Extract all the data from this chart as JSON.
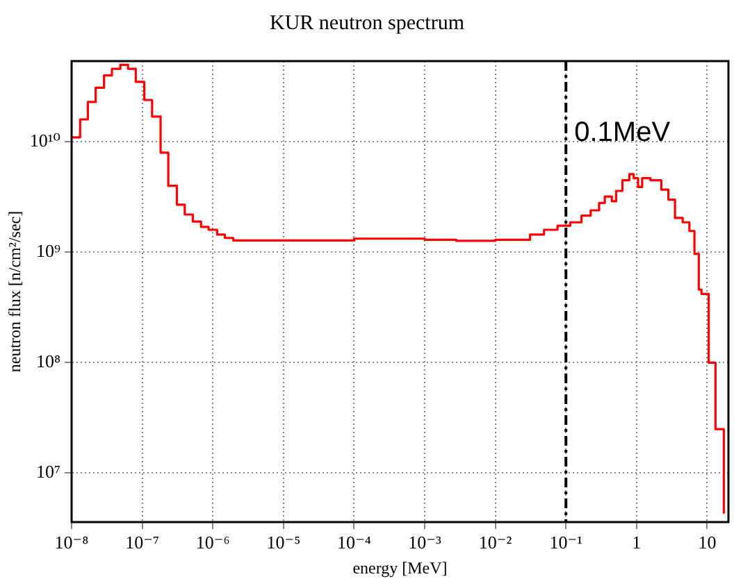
{
  "chart_data": {
    "type": "step",
    "title": "KUR neutron spectrum",
    "xlabel": "energy [MeV]",
    "ylabel": "neutron flux [n/cm²/sec]",
    "log": "xy",
    "grid": true,
    "legend": false,
    "xlim": [
      1e-08,
      20
    ],
    "ylim": [
      3600000.0,
      54000000000.0
    ],
    "xticks": [
      {
        "value": 1e-08,
        "label": "10⁻⁸"
      },
      {
        "value": 1e-07,
        "label": "10⁻⁷"
      },
      {
        "value": 1e-06,
        "label": "10⁻⁶"
      },
      {
        "value": 1e-05,
        "label": "10⁻⁵"
      },
      {
        "value": 0.0001,
        "label": "10⁻⁴"
      },
      {
        "value": 0.001,
        "label": "10⁻³"
      },
      {
        "value": 0.01,
        "label": "10⁻²"
      },
      {
        "value": 0.1,
        "label": "10⁻¹"
      },
      1,
      10
    ],
    "yticks": [
      {
        "value": 10000000.0,
        "label": "10⁷"
      },
      {
        "value": 100000000.0,
        "label": "10⁸"
      },
      {
        "value": 1000000000.0,
        "label": "10⁹"
      },
      {
        "value": 10000000000.0,
        "label": "10¹⁰"
      }
    ],
    "ref_lines": [
      {
        "axis": "x",
        "value": 0.1,
        "label": "0.1MeV",
        "color": "#000000",
        "line_style": "dashed"
      }
    ],
    "series": [
      {
        "color": "#ff0000",
        "x": [
          1e-08,
          1.32e-08,
          1.7e-08,
          2.19e-08,
          2.88e-08,
          3.72e-08,
          4.9e-08,
          6.3e-08,
          8.1e-08,
          1.07e-07,
          1.38e-07,
          1.82e-07,
          2.34e-07,
          3.1e-07,
          4e-07,
          5.2e-07,
          6.8e-07,
          8.7e-07,
          1.15e-06,
          1.48e-06,
          1.95e-06,
          1e-05,
          0.0001,
          0.001,
          0.0028,
          0.01,
          0.031,
          0.049,
          0.076,
          0.115,
          0.166,
          0.224,
          0.295,
          0.355,
          0.447,
          0.513,
          0.63,
          0.79,
          0.91,
          1.05,
          1.2,
          1.57,
          2.24,
          2.82,
          3.5,
          4.5,
          5.6,
          6.6,
          7.6,
          8.3,
          10.5,
          13.1,
          17.2
        ],
        "values": [
          11000000000.0,
          16000000000.0,
          23000000000.0,
          31000000000.0,
          40000000000.0,
          46000000000.0,
          50000000000.0,
          46000000000.0,
          35000000000.0,
          24000000000.0,
          17000000000.0,
          8000000000.0,
          4000000000.0,
          2700000000.0,
          2200000000.0,
          1900000000.0,
          1700000000.0,
          1600000000.0,
          1450000000.0,
          1350000000.0,
          1280000000.0,
          1280000000.0,
          1330000000.0,
          1300000000.0,
          1270000000.0,
          1300000000.0,
          1450000000.0,
          1600000000.0,
          1740000000.0,
          1870000000.0,
          2150000000.0,
          2400000000.0,
          2800000000.0,
          3200000000.0,
          2900000000.0,
          3600000000.0,
          4500000000.0,
          5100000000.0,
          4700000000.0,
          3900000000.0,
          4700000000.0,
          4500000000.0,
          3700000000.0,
          3000000000.0,
          2050000000.0,
          1870000000.0,
          1560000000.0,
          970000000.0,
          460000000.0,
          420000000.0,
          100000000.0,
          25000000.0,
          4300000.0
        ]
      }
    ]
  }
}
